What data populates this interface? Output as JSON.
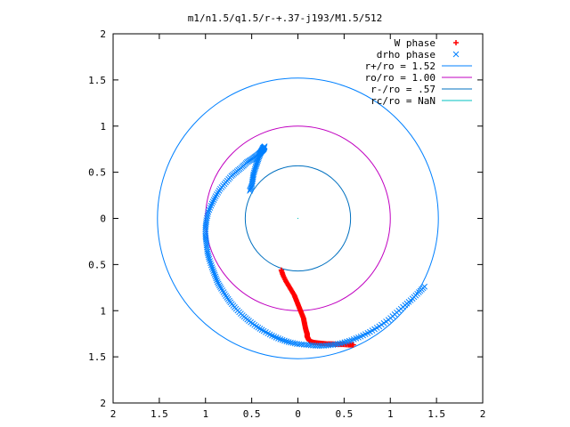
{
  "chart_data": {
    "type": "scatter",
    "title": "m1/n1.5/q1.5/r-+.37-j193/M1.5/512",
    "xlabel": "",
    "ylabel": "",
    "xlim": [
      -2,
      2
    ],
    "ylim": [
      -2,
      2
    ],
    "x_ticks": [
      -2,
      -1.5,
      -1,
      -0.5,
      0,
      0.5,
      1,
      1.5,
      2
    ],
    "y_ticks": [
      -2,
      -1.5,
      -1,
      -0.5,
      0,
      0.5,
      1,
      1.5,
      2
    ],
    "x_tick_labels": [
      "2",
      "1.5",
      "1",
      "0.5",
      "0",
      "0.5",
      "1",
      "1.5",
      "2"
    ],
    "y_tick_labels": [
      "2",
      "1.5",
      "1",
      "0.5",
      "0",
      "0.5",
      "1",
      "1.5",
      "2"
    ],
    "grid": false,
    "legend_position": "top-right",
    "series": [
      {
        "name": "W phase",
        "kind": "points",
        "marker": "plus",
        "color": "#ff0000",
        "x": [
          -0.18,
          -0.16,
          -0.13,
          -0.1,
          -0.07,
          -0.04,
          -0.02,
          0.0,
          0.02,
          0.04,
          0.06,
          0.07,
          0.08,
          0.09,
          0.1,
          0.1,
          0.11,
          0.12,
          0.14,
          0.17,
          0.21,
          0.26,
          0.31,
          0.37,
          0.43,
          0.49,
          0.55,
          0.6
        ],
        "y": [
          -0.56,
          -0.62,
          -0.68,
          -0.73,
          -0.78,
          -0.83,
          -0.88,
          -0.93,
          -0.98,
          -1.03,
          -1.08,
          -1.13,
          -1.18,
          -1.22,
          -1.25,
          -1.28,
          -1.3,
          -1.32,
          -1.335,
          -1.345,
          -1.35,
          -1.355,
          -1.36,
          -1.36,
          -1.365,
          -1.365,
          -1.37,
          -1.37
        ]
      },
      {
        "name": "drho phase",
        "kind": "points",
        "marker": "cross",
        "color": "#0080ff",
        "x": [
          -0.52,
          -0.5,
          -0.49,
          -0.48,
          -0.46,
          -0.44,
          -0.42,
          -0.4,
          -0.38,
          -0.36,
          -0.37,
          -0.39,
          -0.42,
          -0.46,
          -0.5,
          -0.55,
          -0.6,
          -0.66,
          -0.72,
          -0.78,
          -0.84,
          -0.89,
          -0.93,
          -0.97,
          -0.99,
          -1.0,
          -1.0,
          -0.99,
          -0.98,
          -0.96,
          -0.93,
          -0.9,
          -0.87,
          -0.83,
          -0.78,
          -0.73,
          -0.67,
          -0.6,
          -0.53,
          -0.45,
          -0.37,
          -0.28,
          -0.19,
          -0.1,
          -0.01,
          0.09,
          0.19,
          0.28,
          0.38,
          0.48,
          0.58,
          0.68,
          0.78,
          0.88,
          0.98,
          1.07,
          1.16,
          1.24,
          1.31,
          1.37
        ],
        "y": [
          0.3,
          0.35,
          0.42,
          0.48,
          0.55,
          0.61,
          0.67,
          0.72,
          0.76,
          0.78,
          0.75,
          0.73,
          0.7,
          0.67,
          0.64,
          0.61,
          0.56,
          0.51,
          0.46,
          0.39,
          0.32,
          0.24,
          0.16,
          0.07,
          -0.02,
          -0.1,
          -0.19,
          -0.27,
          -0.36,
          -0.44,
          -0.53,
          -0.61,
          -0.69,
          -0.76,
          -0.84,
          -0.91,
          -0.98,
          -1.05,
          -1.11,
          -1.17,
          -1.22,
          -1.27,
          -1.31,
          -1.34,
          -1.36,
          -1.37,
          -1.38,
          -1.38,
          -1.37,
          -1.35,
          -1.32,
          -1.28,
          -1.23,
          -1.17,
          -1.1,
          -1.02,
          -0.94,
          -0.87,
          -0.8,
          -0.74
        ]
      },
      {
        "name": "r+/ro = 1.52",
        "kind": "circle",
        "radius": 1.52,
        "color": "#0080ff"
      },
      {
        "name": "ro/ro = 1.00",
        "kind": "circle",
        "radius": 1.0,
        "color": "#c000c0"
      },
      {
        "name": "r-/ro = .57",
        "kind": "circle",
        "radius": 0.57,
        "color": "#0070c0"
      },
      {
        "name": "rc/ro = NaN",
        "kind": "circle",
        "radius": null,
        "color": "#00c0c0"
      }
    ]
  }
}
